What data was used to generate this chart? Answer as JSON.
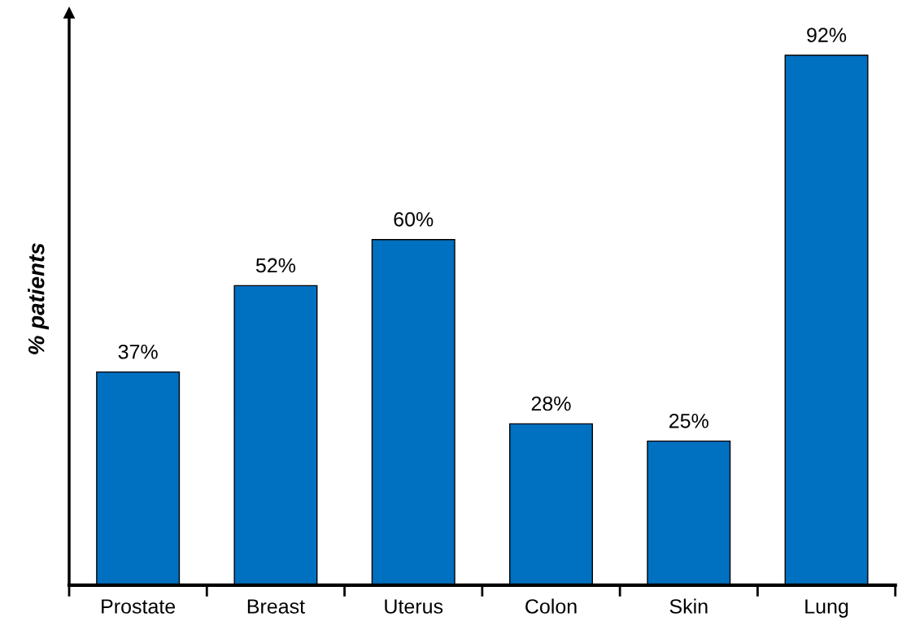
{
  "chart_data": {
    "type": "bar",
    "ylabel": "% patients",
    "categories": [
      "Prostate",
      "Breast",
      "Uterus",
      "Colon",
      "Skin",
      "Lung"
    ],
    "values": [
      37,
      52,
      60,
      28,
      25,
      92
    ],
    "value_labels": [
      "37%",
      "52%",
      "60%",
      "28%",
      "25%",
      "92%"
    ],
    "color": "#0070c0",
    "grid": false,
    "legend": false
  }
}
